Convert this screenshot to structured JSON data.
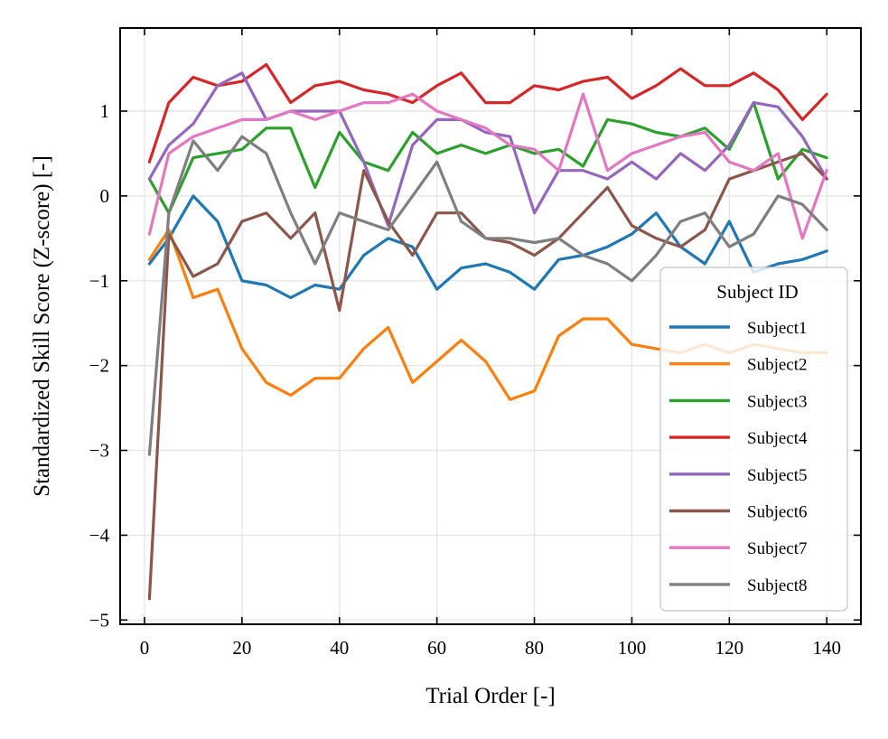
{
  "chart_data": {
    "type": "line",
    "title": "",
    "xlabel": "Trial Order [-]",
    "ylabel": "Standardized Skill Score (Z-score) [-]",
    "xlim": [
      -5,
      147
    ],
    "ylim": [
      -5.05,
      1.98
    ],
    "xticks": [
      0,
      20,
      40,
      60,
      80,
      100,
      120,
      140
    ],
    "yticks": [
      -5,
      -4,
      -3,
      -2,
      -1,
      0,
      1
    ],
    "xtick_labels": [
      "0",
      "20",
      "40",
      "60",
      "80",
      "100",
      "120",
      "140"
    ],
    "ytick_labels": [
      "−5",
      "−4",
      "−3",
      "−2",
      "−1",
      "0",
      "1"
    ],
    "grid": true,
    "legend": {
      "title": "Subject ID",
      "location": "lower-right"
    },
    "x": [
      1,
      5,
      10,
      15,
      20,
      25,
      30,
      35,
      40,
      45,
      50,
      55,
      60,
      65,
      70,
      75,
      80,
      85,
      90,
      95,
      100,
      105,
      110,
      115,
      120,
      125,
      130,
      135,
      140
    ],
    "series": [
      {
        "name": "Subject1",
        "color": "#1f77b4",
        "values": [
          -0.8,
          -0.5,
          0.0,
          -0.3,
          -1.0,
          -1.05,
          -1.2,
          -1.05,
          -1.1,
          -0.7,
          -0.5,
          -0.6,
          -1.1,
          -0.85,
          -0.8,
          -0.9,
          -1.1,
          -0.75,
          -0.7,
          -0.6,
          -0.45,
          -0.2,
          -0.6,
          -0.8,
          -0.3,
          -0.9,
          -0.8,
          -0.75,
          -0.65
        ]
      },
      {
        "name": "Subject2",
        "color": "#ff7f0e",
        "values": [
          -0.75,
          -0.4,
          -1.2,
          -1.1,
          -1.8,
          -2.2,
          -2.35,
          -2.15,
          -2.15,
          -1.8,
          -1.55,
          -2.2,
          -1.95,
          -1.7,
          -1.95,
          -2.4,
          -2.3,
          -1.65,
          -1.45,
          -1.45,
          -1.75,
          -1.8,
          -1.85,
          -1.75,
          -1.85,
          -1.75,
          -1.8,
          -1.85,
          -1.85
        ]
      },
      {
        "name": "Subject3",
        "color": "#2ca02c",
        "values": [
          0.2,
          -0.2,
          0.45,
          0.5,
          0.55,
          0.8,
          0.8,
          0.1,
          0.75,
          0.4,
          0.3,
          0.75,
          0.5,
          0.6,
          0.5,
          0.6,
          0.5,
          0.55,
          0.35,
          0.9,
          0.85,
          0.75,
          0.7,
          0.8,
          0.55,
          1.1,
          0.2,
          0.55,
          0.45
        ]
      },
      {
        "name": "Subject4",
        "color": "#d62728",
        "values": [
          0.4,
          1.1,
          1.4,
          1.3,
          1.35,
          1.55,
          1.1,
          1.3,
          1.35,
          1.25,
          1.2,
          1.1,
          1.3,
          1.45,
          1.1,
          1.1,
          1.3,
          1.25,
          1.35,
          1.4,
          1.15,
          1.3,
          1.5,
          1.3,
          1.3,
          1.45,
          1.25,
          0.9,
          1.2
        ]
      },
      {
        "name": "Subject5",
        "color": "#9467bd",
        "values": [
          0.2,
          0.6,
          0.85,
          1.3,
          1.45,
          0.9,
          1.0,
          1.0,
          1.0,
          0.4,
          -0.35,
          0.6,
          0.9,
          0.9,
          0.75,
          0.7,
          -0.2,
          0.3,
          0.3,
          0.2,
          0.4,
          0.2,
          0.5,
          0.3,
          0.6,
          1.1,
          1.05,
          0.7,
          0.2
        ]
      },
      {
        "name": "Subject6",
        "color": "#8c564b",
        "values": [
          -4.75,
          -0.45,
          -0.95,
          -0.8,
          -0.3,
          -0.2,
          -0.5,
          -0.2,
          -1.35,
          0.3,
          -0.3,
          -0.7,
          -0.2,
          -0.2,
          -0.5,
          -0.55,
          -0.7,
          -0.5,
          -0.2,
          0.1,
          -0.35,
          -0.5,
          -0.6,
          -0.4,
          0.2,
          0.3,
          0.4,
          0.5,
          0.2
        ]
      },
      {
        "name": "Subject7",
        "color": "#e377c2",
        "values": [
          -0.45,
          0.5,
          0.7,
          0.8,
          0.9,
          0.9,
          1.0,
          0.9,
          1.0,
          1.1,
          1.1,
          1.2,
          1.0,
          0.9,
          0.8,
          0.6,
          0.55,
          0.3,
          1.2,
          0.3,
          0.5,
          0.6,
          0.7,
          0.75,
          0.4,
          0.3,
          0.5,
          -0.5,
          0.3
        ]
      },
      {
        "name": "Subject8",
        "color": "#7f7f7f",
        "values": [
          -3.05,
          -0.2,
          0.65,
          0.3,
          0.7,
          0.5,
          -0.2,
          -0.8,
          -0.2,
          -0.3,
          -0.4,
          0.0,
          0.4,
          -0.3,
          -0.5,
          -0.5,
          -0.55,
          -0.5,
          -0.7,
          -0.8,
          -1.0,
          -0.7,
          -0.3,
          -0.2,
          -0.6,
          -0.45,
          0.0,
          -0.1,
          -0.4
        ]
      }
    ]
  }
}
